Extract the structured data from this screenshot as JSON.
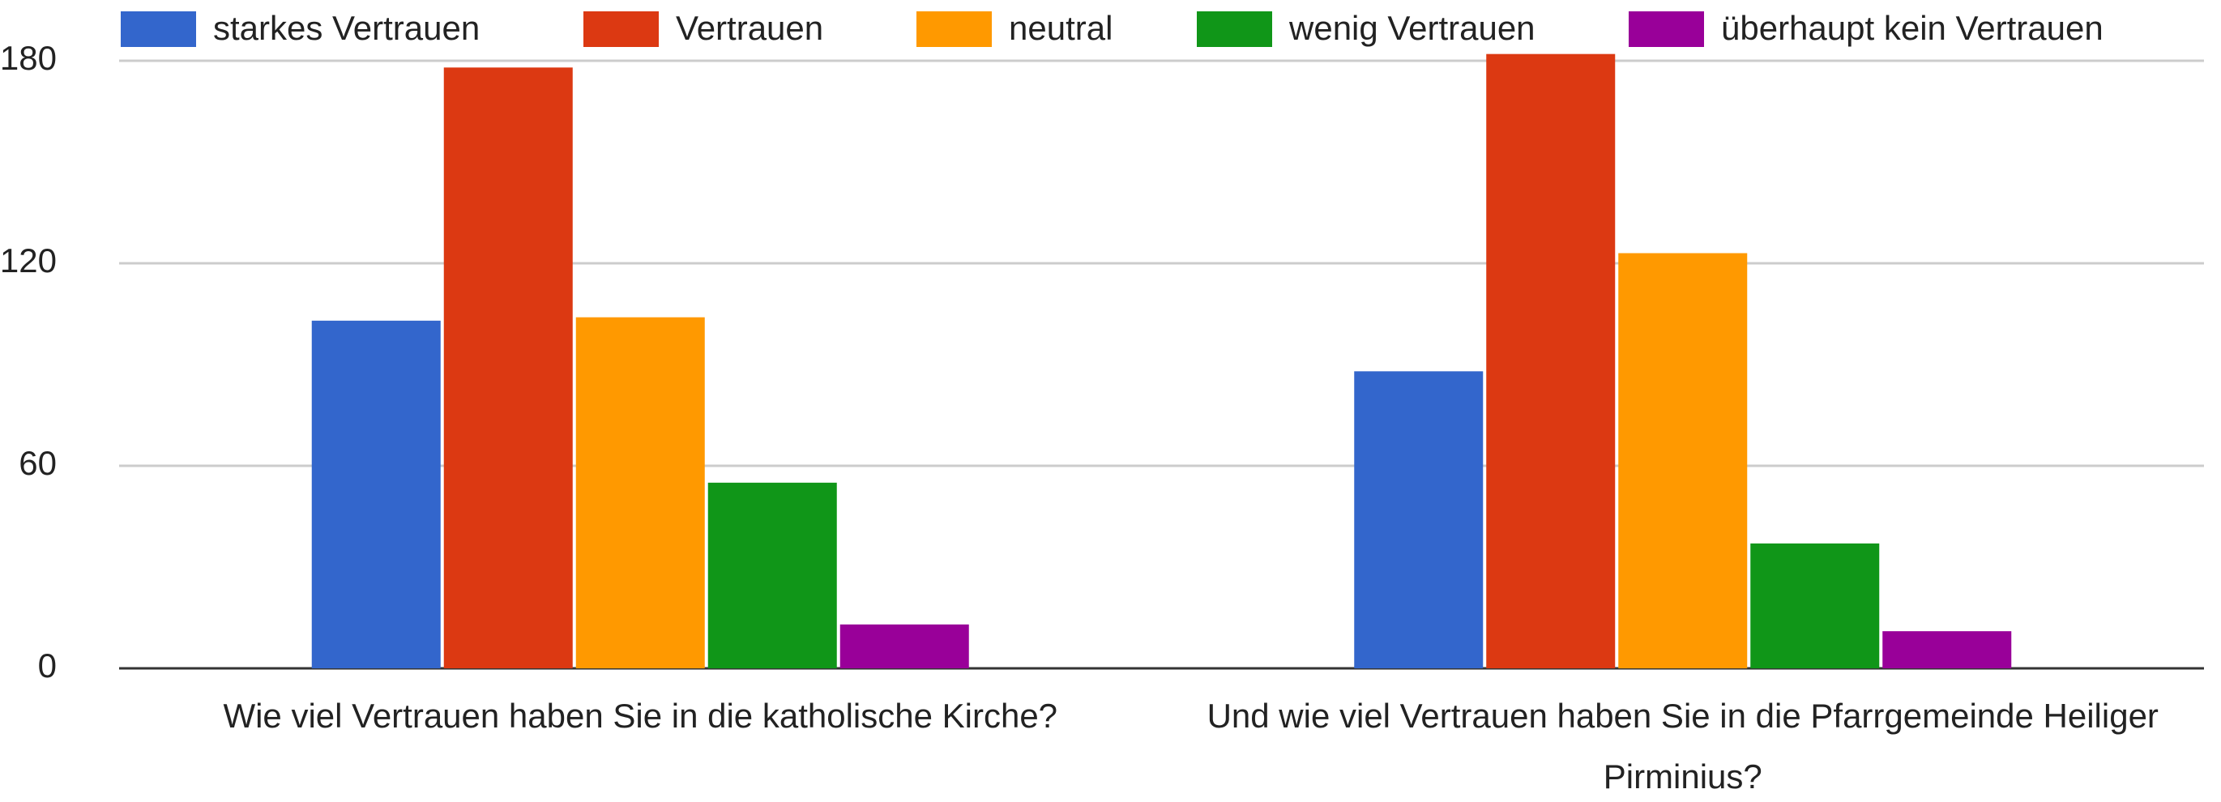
{
  "chart_data": {
    "type": "bar",
    "categories": [
      "Wie viel Vertrauen haben Sie in die katholische Kirche?",
      "Und wie viel Vertrauen haben Sie in die Pfarrgemeinde Heiliger Pirminius?"
    ],
    "series": [
      {
        "name": "starkes Vertrauen",
        "color": "#3366cc",
        "values": [
          103,
          88
        ]
      },
      {
        "name": "Vertrauen",
        "color": "#dc3912",
        "values": [
          178,
          182
        ]
      },
      {
        "name": "neutral",
        "color": "#ff9900",
        "values": [
          104,
          123
        ]
      },
      {
        "name": "wenig Vertrauen",
        "color": "#109618",
        "values": [
          55,
          37
        ]
      },
      {
        "name": "überhaupt kein Vertrauen",
        "color": "#990099",
        "values": [
          13,
          11
        ]
      }
    ],
    "ylim": [
      0,
      185
    ],
    "yticks": [
      0,
      60,
      120,
      180
    ],
    "grid": true,
    "legend": "top"
  }
}
